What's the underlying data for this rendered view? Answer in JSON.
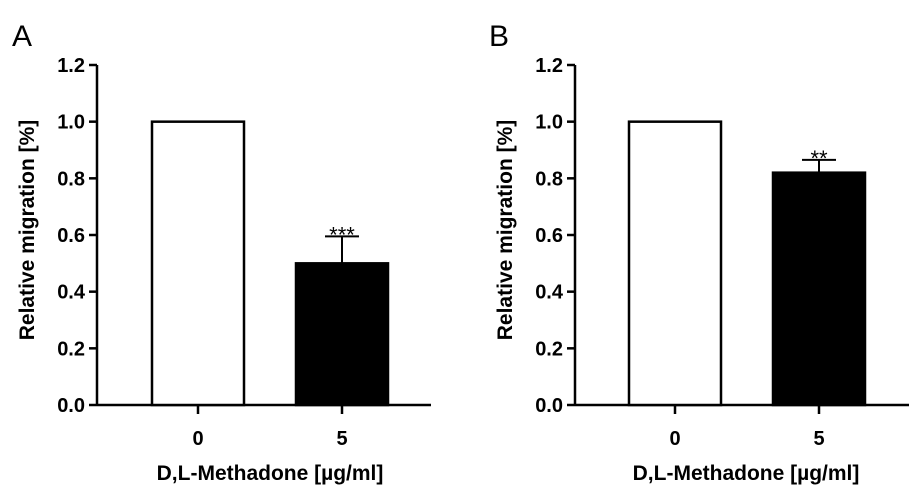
{
  "chart_data": [
    {
      "panel_label": "A",
      "type": "bar",
      "categories": [
        "0",
        "5"
      ],
      "values": [
        1.0,
        0.5
      ],
      "error_upper": [
        0,
        0.095
      ],
      "significance": [
        "",
        "***"
      ],
      "bar_colors": [
        "#ffffff",
        "#000000"
      ],
      "xlabel": "D,L-Methadone [µg/ml]",
      "ylabel": "Relative migration [%]",
      "ylim": [
        0,
        1.2
      ],
      "yticks": [
        "0.0",
        "0.2",
        "0.4",
        "0.6",
        "0.8",
        "1.0",
        "1.2"
      ],
      "grid": false
    },
    {
      "panel_label": "B",
      "type": "bar",
      "categories": [
        "0",
        "5"
      ],
      "values": [
        1.0,
        0.82
      ],
      "error_upper": [
        0,
        0.045
      ],
      "significance": [
        "",
        "**"
      ],
      "bar_colors": [
        "#ffffff",
        "#000000"
      ],
      "xlabel": "D,L-Methadone [µg/ml]",
      "ylabel": "Relative migration [%]",
      "ylim": [
        0,
        1.2
      ],
      "yticks": [
        "0.0",
        "0.2",
        "0.4",
        "0.6",
        "0.8",
        "1.0",
        "1.2"
      ],
      "grid": false
    }
  ]
}
